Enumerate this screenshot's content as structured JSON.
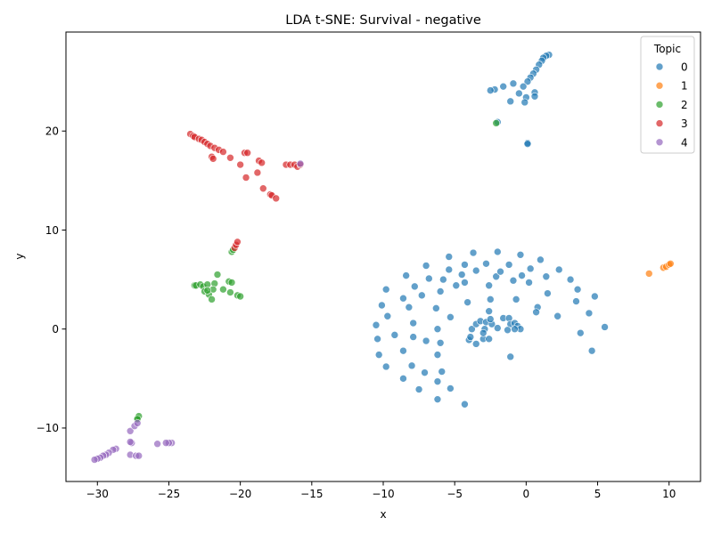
{
  "chart_data": {
    "type": "scatter",
    "title": "LDA t-SNE: Survival - negative",
    "xlabel": "x",
    "ylabel": "y",
    "xlim": [
      -32.2,
      12.2
    ],
    "ylim": [
      -15.4,
      30.0
    ],
    "x_ticks": [
      -30,
      -25,
      -20,
      -15,
      -10,
      -5,
      0,
      5,
      10
    ],
    "x_tick_labels": [
      "−30",
      "−25",
      "−20",
      "−15",
      "−10",
      "−5",
      "0",
      "5",
      "10"
    ],
    "y_ticks": [
      -10,
      0,
      10,
      20
    ],
    "y_tick_labels": [
      "−10",
      "0",
      "10",
      "20"
    ],
    "grid": false,
    "legend": {
      "title": "Topic",
      "placement": "top-right"
    },
    "series": [
      {
        "name": "0",
        "color": "#1f77b4",
        "points": [
          [
            1.6,
            27.7
          ],
          [
            1.4,
            27.6
          ],
          [
            1.2,
            27.4
          ],
          [
            1.1,
            27.1
          ],
          [
            0.9,
            26.7
          ],
          [
            0.7,
            26.2
          ],
          [
            0.5,
            25.8
          ],
          [
            0.3,
            25.4
          ],
          [
            0.1,
            25.0
          ],
          [
            -0.2,
            24.5
          ],
          [
            -0.9,
            24.8
          ],
          [
            -1.6,
            24.5
          ],
          [
            -2.2,
            24.2
          ],
          [
            -2.5,
            24.1
          ],
          [
            -0.5,
            23.8
          ],
          [
            0.6,
            23.9
          ],
          [
            0.6,
            23.5
          ],
          [
            0.0,
            23.4
          ],
          [
            -0.1,
            22.9
          ],
          [
            -1.1,
            23.0
          ],
          [
            0.1,
            18.8
          ],
          [
            -2.0,
            20.9
          ],
          [
            0.1,
            18.7
          ],
          [
            -4.3,
            -7.6
          ],
          [
            -5.3,
            -6.0
          ],
          [
            -6.2,
            -7.1
          ],
          [
            -7.5,
            -6.1
          ],
          [
            -8.6,
            -5.0
          ],
          [
            -6.2,
            -5.3
          ],
          [
            -5.9,
            -4.3
          ],
          [
            -7.1,
            -4.4
          ],
          [
            -9.8,
            -3.8
          ],
          [
            -8.0,
            -3.7
          ],
          [
            -10.3,
            -2.6
          ],
          [
            -8.6,
            -2.2
          ],
          [
            -6.2,
            -2.6
          ],
          [
            -10.4,
            -1.0
          ],
          [
            -7.0,
            -1.2
          ],
          [
            -6.0,
            -1.4
          ],
          [
            -9.2,
            -0.6
          ],
          [
            -7.9,
            -0.8
          ],
          [
            -6.2,
            0.0
          ],
          [
            -10.5,
            0.4
          ],
          [
            -7.9,
            0.6
          ],
          [
            -9.7,
            1.3
          ],
          [
            -5.3,
            1.2
          ],
          [
            -10.1,
            2.4
          ],
          [
            -8.2,
            2.2
          ],
          [
            -6.3,
            2.1
          ],
          [
            -8.6,
            3.1
          ],
          [
            -7.3,
            3.4
          ],
          [
            -6.0,
            3.8
          ],
          [
            -9.8,
            4.0
          ],
          [
            -7.8,
            4.3
          ],
          [
            -4.1,
            2.7
          ],
          [
            -2.6,
            1.8
          ],
          [
            -5.8,
            5.0
          ],
          [
            -4.9,
            4.4
          ],
          [
            -4.3,
            4.7
          ],
          [
            -2.6,
            4.4
          ],
          [
            -8.4,
            5.4
          ],
          [
            -6.8,
            5.1
          ],
          [
            -5.4,
            6.0
          ],
          [
            -4.5,
            5.5
          ],
          [
            -2.1,
            5.3
          ],
          [
            -0.9,
            4.9
          ],
          [
            -3.5,
            5.9
          ],
          [
            -1.8,
            5.8
          ],
          [
            -0.3,
            5.4
          ],
          [
            0.2,
            4.7
          ],
          [
            -7.0,
            6.4
          ],
          [
            -4.3,
            6.5
          ],
          [
            -2.8,
            6.6
          ],
          [
            -1.2,
            6.5
          ],
          [
            0.3,
            6.1
          ],
          [
            1.4,
            5.3
          ],
          [
            -5.4,
            7.3
          ],
          [
            -3.7,
            7.7
          ],
          [
            -2.0,
            7.8
          ],
          [
            -0.4,
            7.5
          ],
          [
            1.0,
            7.0
          ],
          [
            2.3,
            6.0
          ],
          [
            3.1,
            5.0
          ],
          [
            3.6,
            4.0
          ],
          [
            4.8,
            3.3
          ],
          [
            3.5,
            2.8
          ],
          [
            5.5,
            0.2
          ],
          [
            4.6,
            -2.2
          ],
          [
            3.8,
            -0.4
          ],
          [
            2.2,
            1.3
          ],
          [
            1.5,
            3.6
          ],
          [
            0.8,
            2.2
          ],
          [
            0.7,
            1.7
          ],
          [
            4.4,
            1.6
          ],
          [
            -0.7,
            3.0
          ],
          [
            -2.5,
            3.0
          ],
          [
            -1.1,
            -2.8
          ],
          [
            -4.0,
            -1.1
          ],
          [
            -3.5,
            -1.5
          ],
          [
            -3.0,
            -1.0
          ],
          [
            -2.6,
            -1.0
          ],
          [
            -3.9,
            -0.8
          ],
          [
            -3.8,
            0.0
          ],
          [
            -3.5,
            0.5
          ],
          [
            -3.2,
            0.8
          ],
          [
            -2.8,
            0.7
          ],
          [
            -2.4,
            0.5
          ],
          [
            -2.5,
            1.0
          ],
          [
            -2.0,
            0.1
          ],
          [
            -1.6,
            1.1
          ],
          [
            -1.2,
            1.1
          ],
          [
            -1.1,
            0.5
          ],
          [
            -0.8,
            0.6
          ],
          [
            -0.6,
            0.3
          ],
          [
            -0.4,
            0.0
          ],
          [
            -0.8,
            0.0
          ],
          [
            -1.3,
            -0.1
          ],
          [
            -2.9,
            0.0
          ],
          [
            -3.0,
            -0.4
          ]
        ]
      },
      {
        "name": "1",
        "color": "#ff7f0e",
        "points": [
          [
            8.6,
            5.6
          ],
          [
            9.6,
            6.2
          ],
          [
            9.8,
            6.3
          ],
          [
            10.0,
            6.5
          ],
          [
            10.1,
            6.6
          ]
        ]
      },
      {
        "name": "2",
        "color": "#2ca02c",
        "points": [
          [
            -2.1,
            20.8
          ],
          [
            -20.6,
            7.8
          ],
          [
            -20.5,
            8.0
          ],
          [
            -23.2,
            4.4
          ],
          [
            -23.1,
            4.4
          ],
          [
            -22.8,
            4.5
          ],
          [
            -22.6,
            4.3
          ],
          [
            -22.3,
            4.5
          ],
          [
            -21.8,
            4.6
          ],
          [
            -21.2,
            4.0
          ],
          [
            -20.8,
            4.8
          ],
          [
            -20.6,
            4.7
          ],
          [
            -21.6,
            5.5
          ],
          [
            -22.5,
            3.8
          ],
          [
            -22.2,
            3.5
          ],
          [
            -22.0,
            3.0
          ],
          [
            -21.9,
            4.0
          ],
          [
            -22.3,
            3.9
          ],
          [
            -20.7,
            3.7
          ],
          [
            -20.2,
            3.4
          ],
          [
            -20.0,
            3.3
          ],
          [
            -27.2,
            -9.0
          ],
          [
            -27.1,
            -8.8
          ],
          [
            -27.2,
            -9.1
          ]
        ]
      },
      {
        "name": "3",
        "color": "#d62728",
        "points": [
          [
            -23.5,
            19.7
          ],
          [
            -23.3,
            19.5
          ],
          [
            -23.2,
            19.4
          ],
          [
            -22.9,
            19.2
          ],
          [
            -22.7,
            19.1
          ],
          [
            -22.5,
            18.9
          ],
          [
            -22.3,
            18.7
          ],
          [
            -22.1,
            18.5
          ],
          [
            -21.8,
            18.3
          ],
          [
            -21.5,
            18.1
          ],
          [
            -21.2,
            17.9
          ],
          [
            -22.0,
            17.4
          ],
          [
            -21.9,
            17.2
          ],
          [
            -20.7,
            17.3
          ],
          [
            -19.7,
            17.8
          ],
          [
            -19.5,
            17.8
          ],
          [
            -20.0,
            16.6
          ],
          [
            -19.6,
            15.3
          ],
          [
            -18.7,
            17.0
          ],
          [
            -18.5,
            16.8
          ],
          [
            -18.8,
            15.8
          ],
          [
            -18.4,
            14.2
          ],
          [
            -17.9,
            13.6
          ],
          [
            -17.8,
            13.5
          ],
          [
            -17.5,
            13.2
          ],
          [
            -16.8,
            16.6
          ],
          [
            -16.5,
            16.6
          ],
          [
            -16.2,
            16.6
          ],
          [
            -16.0,
            16.4
          ],
          [
            -15.8,
            16.6
          ],
          [
            -20.4,
            8.2
          ],
          [
            -20.3,
            8.5
          ],
          [
            -20.2,
            8.8
          ]
        ]
      },
      {
        "name": "4",
        "color": "#9467bd",
        "points": [
          [
            -15.8,
            16.7
          ],
          [
            -24.8,
            -11.5
          ],
          [
            -25.0,
            -11.5
          ],
          [
            -25.2,
            -11.5
          ],
          [
            -25.8,
            -11.6
          ],
          [
            -27.6,
            -11.5
          ],
          [
            -27.7,
            -11.4
          ],
          [
            -27.7,
            -10.3
          ],
          [
            -27.4,
            -9.8
          ],
          [
            -27.2,
            -9.5
          ],
          [
            -27.7,
            -12.7
          ],
          [
            -27.3,
            -12.8
          ],
          [
            -27.1,
            -12.8
          ],
          [
            -28.7,
            -12.1
          ],
          [
            -28.9,
            -12.2
          ],
          [
            -29.2,
            -12.5
          ],
          [
            -29.4,
            -12.7
          ],
          [
            -29.6,
            -12.8
          ],
          [
            -29.8,
            -13.0
          ],
          [
            -30.0,
            -13.1
          ],
          [
            -30.2,
            -13.2
          ]
        ]
      }
    ]
  }
}
